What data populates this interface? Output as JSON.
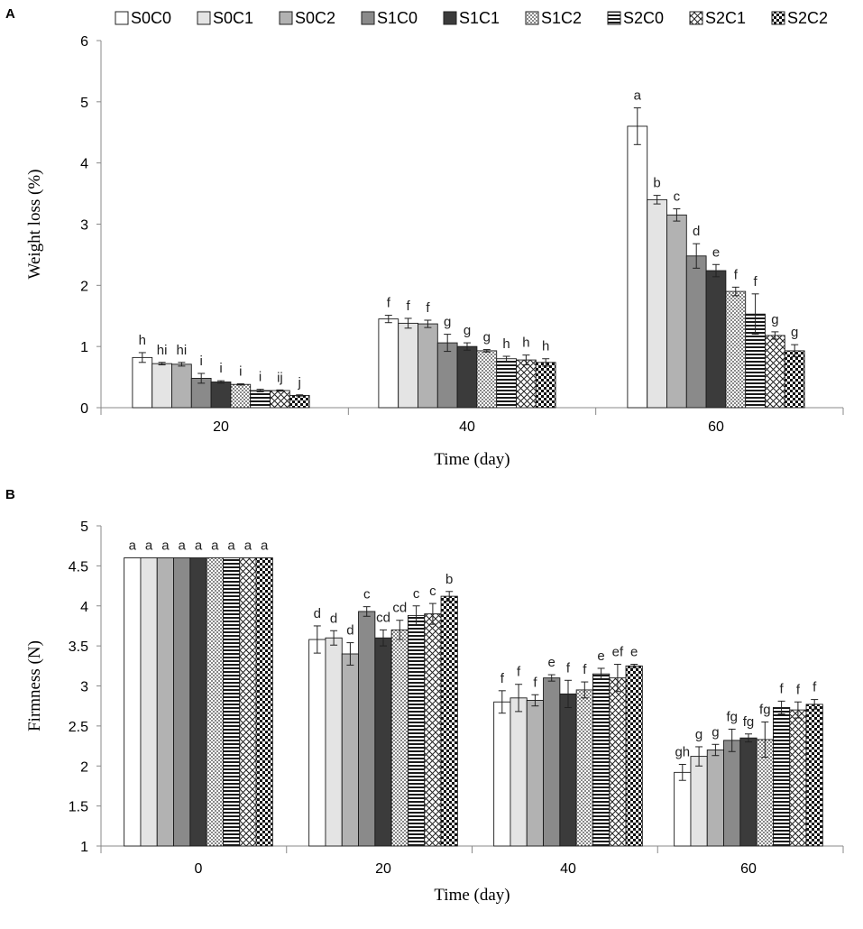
{
  "legend": {
    "entries": [
      "S0C0",
      "S0C1",
      "S0C2",
      "S1C0",
      "S1C1",
      "S1C2",
      "S2C0",
      "S2C1",
      "S2C2"
    ],
    "placement": "top"
  },
  "series_styles": [
    {
      "name": "S0C0",
      "fill": "#ffffff",
      "pattern": "solid"
    },
    {
      "name": "S0C1",
      "fill": "#e4e4e4",
      "pattern": "solid"
    },
    {
      "name": "S0C2",
      "fill": "#b2b2b2",
      "pattern": "solid"
    },
    {
      "name": "S1C0",
      "fill": "#8a8a8a",
      "pattern": "solid"
    },
    {
      "name": "S1C1",
      "fill": "#3b3b3b",
      "pattern": "solid"
    },
    {
      "name": "S1C2",
      "fill": "#ffffff",
      "pattern": "dots"
    },
    {
      "name": "S2C0",
      "fill": "#ffffff",
      "pattern": "horizontal-stripes"
    },
    {
      "name": "S2C1",
      "fill": "#ffffff",
      "pattern": "crosshatch"
    },
    {
      "name": "S2C2",
      "fill": "#ffffff",
      "pattern": "checker"
    }
  ],
  "chart_data": [
    {
      "panel": "A",
      "type": "bar",
      "xlabel": "Time (day)",
      "ylabel": "Weight loss (%)",
      "ylim": [
        0,
        6
      ],
      "yticks": [
        0,
        1,
        2,
        3,
        4,
        5,
        6
      ],
      "categories": [
        "20",
        "40",
        "60"
      ],
      "series": [
        {
          "name": "S0C0",
          "values": [
            0.82,
            1.45,
            4.6
          ],
          "errors": [
            0.08,
            0.06,
            0.3
          ],
          "letters": [
            "h",
            "f",
            "a"
          ]
        },
        {
          "name": "S0C1",
          "values": [
            0.72,
            1.38,
            3.4
          ],
          "errors": [
            0.02,
            0.08,
            0.07
          ],
          "letters": [
            "hi",
            "f",
            "b"
          ]
        },
        {
          "name": "S0C2",
          "values": [
            0.71,
            1.37,
            3.15
          ],
          "errors": [
            0.03,
            0.06,
            0.1
          ],
          "letters": [
            "hi",
            "f",
            "c"
          ]
        },
        {
          "name": "S1C0",
          "values": [
            0.48,
            1.06,
            2.48
          ],
          "errors": [
            0.08,
            0.14,
            0.2
          ],
          "letters": [
            "i",
            "g",
            "d"
          ]
        },
        {
          "name": "S1C1",
          "values": [
            0.42,
            1.0,
            2.24
          ],
          "errors": [
            0.02,
            0.06,
            0.1
          ],
          "letters": [
            "i",
            "g",
            "e"
          ]
        },
        {
          "name": "S1C2",
          "values": [
            0.38,
            0.93,
            1.9
          ],
          "errors": [
            0.01,
            0.02,
            0.07
          ],
          "letters": [
            "i",
            "g",
            "f"
          ]
        },
        {
          "name": "S2C0",
          "values": [
            0.28,
            0.8,
            1.53
          ],
          "errors": [
            0.02,
            0.04,
            0.33
          ],
          "letters": [
            "i",
            "h",
            "f"
          ]
        },
        {
          "name": "S2C1",
          "values": [
            0.28,
            0.78,
            1.18
          ],
          "errors": [
            0.01,
            0.08,
            0.06
          ],
          "letters": [
            "ij",
            "h",
            "g"
          ]
        },
        {
          "name": "S2C2",
          "values": [
            0.2,
            0.74,
            0.93
          ],
          "errors": [
            0.01,
            0.06,
            0.1
          ],
          "letters": [
            "j",
            "h",
            "g"
          ]
        }
      ]
    },
    {
      "panel": "B",
      "type": "bar",
      "xlabel": "Time (day)",
      "ylabel": "Firmness (N)",
      "ylim": [
        1,
        5
      ],
      "yticks": [
        1,
        1.5,
        2,
        2.5,
        3,
        3.5,
        4,
        4.5,
        5
      ],
      "categories": [
        "0",
        "20",
        "40",
        "60"
      ],
      "series": [
        {
          "name": "S0C0",
          "values": [
            4.6,
            3.58,
            2.8,
            1.92
          ],
          "errors": [
            0,
            0.17,
            0.14,
            0.1
          ],
          "letters": [
            "a",
            "d",
            "f",
            "gh"
          ]
        },
        {
          "name": "S0C1",
          "values": [
            4.6,
            3.6,
            2.85,
            2.12
          ],
          "errors": [
            0,
            0.09,
            0.17,
            0.12
          ],
          "letters": [
            "a",
            "d",
            "f",
            "g"
          ]
        },
        {
          "name": "S0C2",
          "values": [
            4.6,
            3.4,
            2.82,
            2.2
          ],
          "errors": [
            0,
            0.14,
            0.07,
            0.07
          ],
          "letters": [
            "a",
            "d",
            "f",
            "g"
          ]
        },
        {
          "name": "S1C0",
          "values": [
            4.6,
            3.93,
            3.1,
            2.32
          ],
          "errors": [
            0,
            0.06,
            0.04,
            0.14
          ],
          "letters": [
            "a",
            "c",
            "e",
            "fg"
          ]
        },
        {
          "name": "S1C1",
          "values": [
            4.6,
            3.6,
            2.9,
            2.35
          ],
          "errors": [
            0,
            0.1,
            0.17,
            0.05
          ],
          "letters": [
            "a",
            "cd",
            "f",
            "fg"
          ]
        },
        {
          "name": "S1C2",
          "values": [
            4.6,
            3.7,
            2.95,
            2.33
          ],
          "errors": [
            0,
            0.12,
            0.1,
            0.22
          ],
          "letters": [
            "a",
            "cd",
            "f",
            "fg"
          ]
        },
        {
          "name": "S2C0",
          "values": [
            4.6,
            3.88,
            3.15,
            2.73
          ],
          "errors": [
            0,
            0.12,
            0.07,
            0.08
          ],
          "letters": [
            "a",
            "c",
            "e",
            "f"
          ]
        },
        {
          "name": "S2C1",
          "values": [
            4.6,
            3.9,
            3.1,
            2.7
          ],
          "errors": [
            0,
            0.13,
            0.17,
            0.1
          ],
          "letters": [
            "a",
            "c",
            "ef",
            "f"
          ]
        },
        {
          "name": "S2C2",
          "values": [
            4.6,
            4.12,
            3.25,
            2.77
          ],
          "errors": [
            0,
            0.06,
            0.02,
            0.06
          ],
          "letters": [
            "a",
            "b",
            "e",
            "f"
          ]
        }
      ]
    }
  ],
  "panels": {
    "A": {
      "label": "A"
    },
    "B": {
      "label": "B"
    }
  }
}
